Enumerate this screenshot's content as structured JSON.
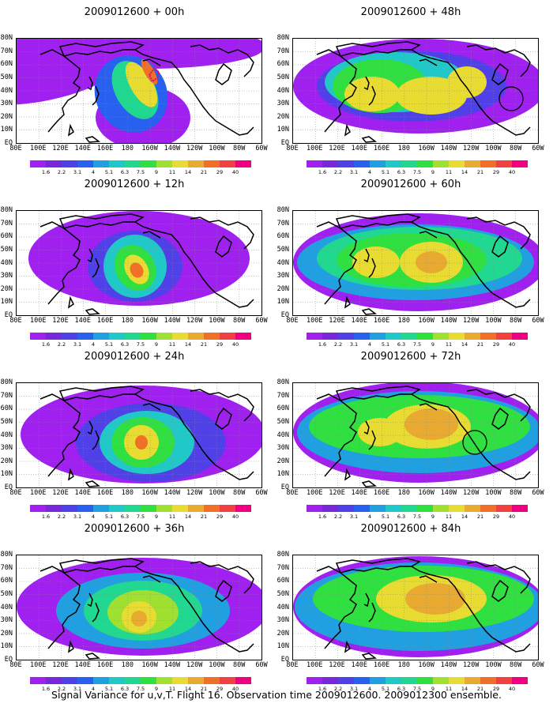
{
  "panels": [
    {
      "title": "2009012600 + 00h"
    },
    {
      "title": "2009012600 + 48h"
    },
    {
      "title": "2009012600 + 12h"
    },
    {
      "title": "2009012600 + 60h"
    },
    {
      "title": "2009012600 + 24h"
    },
    {
      "title": "2009012600 + 72h"
    },
    {
      "title": "2009012600 + 36h"
    },
    {
      "title": "2009012600 + 84h"
    }
  ],
  "lat_labels": [
    "80N",
    "70N",
    "60N",
    "50N",
    "40N",
    "30N",
    "20N",
    "10N",
    "EQ"
  ],
  "lon_labels": [
    "80E",
    "100E",
    "120E",
    "140E",
    "160E",
    "180",
    "160W",
    "140W",
    "120W",
    "100W",
    "80W",
    "60W"
  ],
  "colorbar": {
    "labels": [
      "1.6",
      "2.2",
      "3.1",
      "4",
      "5.1",
      "6.3",
      "7.5",
      "9",
      "11",
      "14",
      "21",
      "29",
      "40"
    ],
    "colors": [
      "#a020f0",
      "#7828d8",
      "#5040e8",
      "#2860f0",
      "#20a0e0",
      "#20c8c8",
      "#20d890",
      "#30e040",
      "#a0e030",
      "#e8dc32",
      "#e8aa30",
      "#f07028",
      "#f04040",
      "#f00080"
    ]
  },
  "caption": "Signal Variance for u,v,T. Flight 16. Observation time 2009012600. 2009012300 ensemble."
}
